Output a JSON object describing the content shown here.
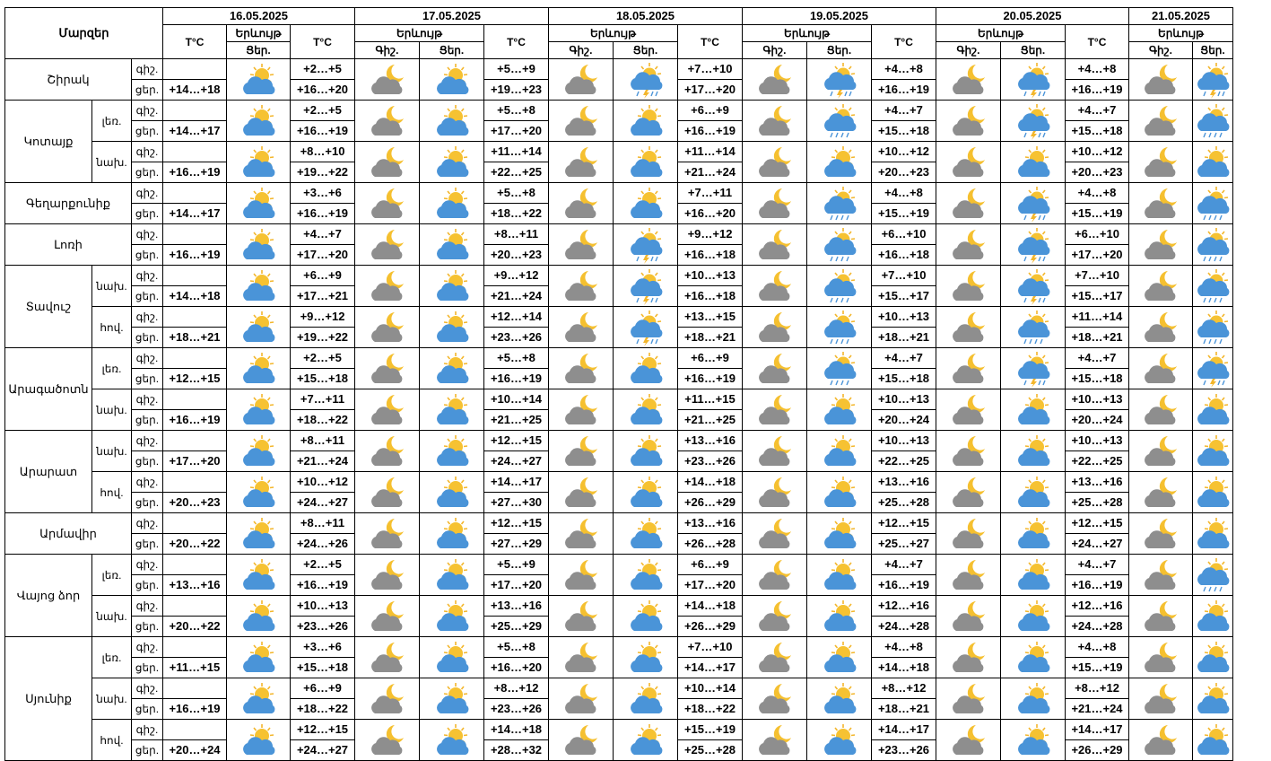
{
  "header": {
    "region_title": "Մարզեր",
    "temp_label": "T°C",
    "phenomenon_label": "Երևույթ",
    "night_label_first": "Ցեր.",
    "night_label": "Գիշ.",
    "day_label": "Ցեր.",
    "dates": [
      "16.05.2025",
      "17.05.2025",
      "18.05.2025",
      "19.05.2025",
      "20.05.2025",
      "21.05.2025"
    ]
  },
  "tod": {
    "night": "գիշ.",
    "day": "ցեր."
  },
  "icon_types": {
    "s": "sun-behind-cloud-icon",
    "m": "moon-behind-grey-cloud-icon",
    "t": "sun-cloud-thunder-rain-icon",
    "r": "sun-cloud-rain-icon"
  },
  "regions": [
    {
      "name": "Շիրակ",
      "subs": [
        {
          "name": "",
          "n": [
            "",
            "+2…+5",
            "+5…+9",
            "+7…+10",
            "+4…+8",
            "+4…+8"
          ],
          "d": [
            "+14…+18",
            "+16…+20",
            "+19…+23",
            "+17…+20",
            "+16…+19",
            "+16…+19"
          ],
          "icons": [
            "s",
            "m",
            "s",
            "m",
            "t",
            "m",
            "t",
            "m",
            "t",
            "m",
            "t"
          ]
        }
      ]
    },
    {
      "name": "Կոտայք",
      "subs": [
        {
          "name": "լեռ.",
          "n": [
            "",
            "+2…+5",
            "+5…+8",
            "+6…+9",
            "+4…+7",
            "+4…+7"
          ],
          "d": [
            "+14…+17",
            "+16…+19",
            "+17…+20",
            "+16…+19",
            "+15…+18",
            "+15…+18"
          ],
          "icons": [
            "s",
            "m",
            "s",
            "m",
            "s",
            "m",
            "r",
            "m",
            "t",
            "m",
            "r"
          ]
        },
        {
          "name": "նախ.",
          "n": [
            "",
            "+8…+10",
            "+11…+14",
            "+11…+14",
            "+10…+12",
            "+10…+12"
          ],
          "d": [
            "+16…+19",
            "+19…+22",
            "+22…+25",
            "+21…+24",
            "+20…+23",
            "+20…+23"
          ],
          "icons": [
            "s",
            "m",
            "s",
            "m",
            "s",
            "m",
            "s",
            "m",
            "s",
            "m",
            "s"
          ]
        }
      ]
    },
    {
      "name": "Գեղարքունիք",
      "subs": [
        {
          "name": "",
          "n": [
            "",
            "+3…+6",
            "+5…+8",
            "+7…+11",
            "+4…+8",
            "+4…+8"
          ],
          "d": [
            "+14…+17",
            "+16…+19",
            "+18…+22",
            "+16…+20",
            "+15…+19",
            "+15…+19"
          ],
          "icons": [
            "s",
            "m",
            "s",
            "m",
            "s",
            "m",
            "r",
            "m",
            "t",
            "m",
            "r"
          ]
        }
      ]
    },
    {
      "name": "Լոռի",
      "subs": [
        {
          "name": "",
          "n": [
            "",
            "+4…+7",
            "+8…+11",
            "+9…+12",
            "+6…+10",
            "+6…+10"
          ],
          "d": [
            "+16…+19",
            "+17…+20",
            "+20…+23",
            "+16…+18",
            "+16…+18",
            "+17…+20"
          ],
          "icons": [
            "s",
            "m",
            "s",
            "m",
            "t",
            "m",
            "r",
            "m",
            "t",
            "m",
            "r"
          ]
        }
      ]
    },
    {
      "name": "Տավուշ",
      "subs": [
        {
          "name": "նախ.",
          "n": [
            "",
            "+6…+9",
            "+9…+12",
            "+10…+13",
            "+7…+10",
            "+7…+10"
          ],
          "d": [
            "+14…+18",
            "+17…+21",
            "+21…+24",
            "+16…+18",
            "+15…+17",
            "+15…+17"
          ],
          "icons": [
            "s",
            "m",
            "s",
            "m",
            "t",
            "m",
            "r",
            "m",
            "t",
            "m",
            "r"
          ]
        },
        {
          "name": "հով.",
          "n": [
            "",
            "+9…+12",
            "+12…+14",
            "+13…+15",
            "+10…+13",
            "+11…+14"
          ],
          "d": [
            "+18…+21",
            "+19…+22",
            "+23…+26",
            "+18…+21",
            "+18…+21",
            "+18…+21"
          ],
          "icons": [
            "s",
            "m",
            "s",
            "m",
            "t",
            "m",
            "r",
            "m",
            "r",
            "m",
            "r"
          ]
        }
      ]
    },
    {
      "name": "Արագածոտն",
      "subs": [
        {
          "name": "լեռ.",
          "n": [
            "",
            "+2…+5",
            "+5…+8",
            "+6…+9",
            "+4…+7",
            "+4…+7"
          ],
          "d": [
            "+12…+15",
            "+15…+18",
            "+16…+19",
            "+16…+19",
            "+15…+18",
            "+15…+18"
          ],
          "icons": [
            "s",
            "m",
            "s",
            "m",
            "s",
            "m",
            "r",
            "m",
            "t",
            "m",
            "t"
          ]
        },
        {
          "name": "նախ.",
          "n": [
            "",
            "+7…+11",
            "+10…+14",
            "+11…+15",
            "+10…+13",
            "+10…+13"
          ],
          "d": [
            "+16…+19",
            "+18…+22",
            "+21…+25",
            "+21…+25",
            "+20…+24",
            "+20…+24"
          ],
          "icons": [
            "s",
            "m",
            "s",
            "m",
            "s",
            "m",
            "s",
            "m",
            "s",
            "m",
            "s"
          ]
        }
      ]
    },
    {
      "name": "Արարատ",
      "subs": [
        {
          "name": "նախ.",
          "n": [
            "",
            "+8…+11",
            "+12…+15",
            "+13…+16",
            "+10…+13",
            "+10…+13"
          ],
          "d": [
            "+17…+20",
            "+21…+24",
            "+24…+27",
            "+23…+26",
            "+22…+25",
            "+22…+25"
          ],
          "icons": [
            "s",
            "m",
            "s",
            "m",
            "s",
            "m",
            "s",
            "m",
            "s",
            "m",
            "s"
          ]
        },
        {
          "name": "հով.",
          "n": [
            "",
            "+10…+12",
            "+14…+17",
            "+14…+18",
            "+13…+16",
            "+13…+16"
          ],
          "d": [
            "+20…+23",
            "+24…+27",
            "+27…+30",
            "+26…+29",
            "+25…+28",
            "+25…+28"
          ],
          "icons": [
            "s",
            "m",
            "s",
            "m",
            "s",
            "m",
            "s",
            "m",
            "s",
            "m",
            "s"
          ]
        }
      ]
    },
    {
      "name": "Արմավիր",
      "subs": [
        {
          "name": "",
          "n": [
            "",
            "+8…+11",
            "+12…+15",
            "+13…+16",
            "+12…+15",
            "+12…+15"
          ],
          "d": [
            "+20…+22",
            "+24…+26",
            "+27…+29",
            "+26…+28",
            "+25…+27",
            "+24…+27"
          ],
          "icons": [
            "s",
            "m",
            "s",
            "m",
            "s",
            "m",
            "s",
            "m",
            "s",
            "m",
            "s"
          ]
        }
      ]
    },
    {
      "name": "Վայոց ձոր",
      "subs": [
        {
          "name": "լեռ.",
          "n": [
            "",
            "+2…+5",
            "+5…+9",
            "+6…+9",
            "+4…+7",
            "+4…+7"
          ],
          "d": [
            "+13…+16",
            "+16…+19",
            "+17…+20",
            "+17…+20",
            "+16…+19",
            "+16…+19"
          ],
          "icons": [
            "s",
            "m",
            "s",
            "m",
            "s",
            "m",
            "s",
            "m",
            "s",
            "m",
            "r"
          ]
        },
        {
          "name": "նախ.",
          "n": [
            "",
            "+10…+13",
            "+13…+16",
            "+14…+18",
            "+12…+16",
            "+12…+16"
          ],
          "d": [
            "+20…+22",
            "+23…+26",
            "+25…+29",
            "+26…+29",
            "+24…+28",
            "+24…+28"
          ],
          "icons": [
            "s",
            "m",
            "s",
            "m",
            "s",
            "m",
            "s",
            "m",
            "s",
            "m",
            "s"
          ]
        }
      ]
    },
    {
      "name": "Սյունիք",
      "subs": [
        {
          "name": "լեռ.",
          "n": [
            "",
            "+3…+6",
            "+5…+8",
            "+7…+10",
            "+4…+8",
            "+4…+8"
          ],
          "d": [
            "+11…+15",
            "+15…+18",
            "+16…+20",
            "+14…+17",
            "+14…+18",
            "+15…+19"
          ],
          "icons": [
            "s",
            "m",
            "s",
            "m",
            "s",
            "m",
            "s",
            "m",
            "s",
            "m",
            "s"
          ]
        },
        {
          "name": "նախ.",
          "n": [
            "",
            "+6…+9",
            "+8…+12",
            "+10…+14",
            "+8…+12",
            "+8…+12"
          ],
          "d": [
            "+16…+19",
            "+18…+22",
            "+23…+26",
            "+18…+22",
            "+18…+21",
            "+21…+24"
          ],
          "icons": [
            "s",
            "m",
            "s",
            "m",
            "s",
            "m",
            "s",
            "m",
            "s",
            "m",
            "s"
          ]
        },
        {
          "name": "հով.",
          "n": [
            "",
            "+12…+15",
            "+14…+18",
            "+15…+19",
            "+14…+17",
            "+14…+17"
          ],
          "d": [
            "+20…+24",
            "+24…+27",
            "+28…+32",
            "+25…+28",
            "+23…+26",
            "+26…+29"
          ],
          "icons": [
            "s",
            "m",
            "s",
            "m",
            "s",
            "m",
            "s",
            "m",
            "s",
            "m",
            "s"
          ]
        }
      ]
    }
  ]
}
